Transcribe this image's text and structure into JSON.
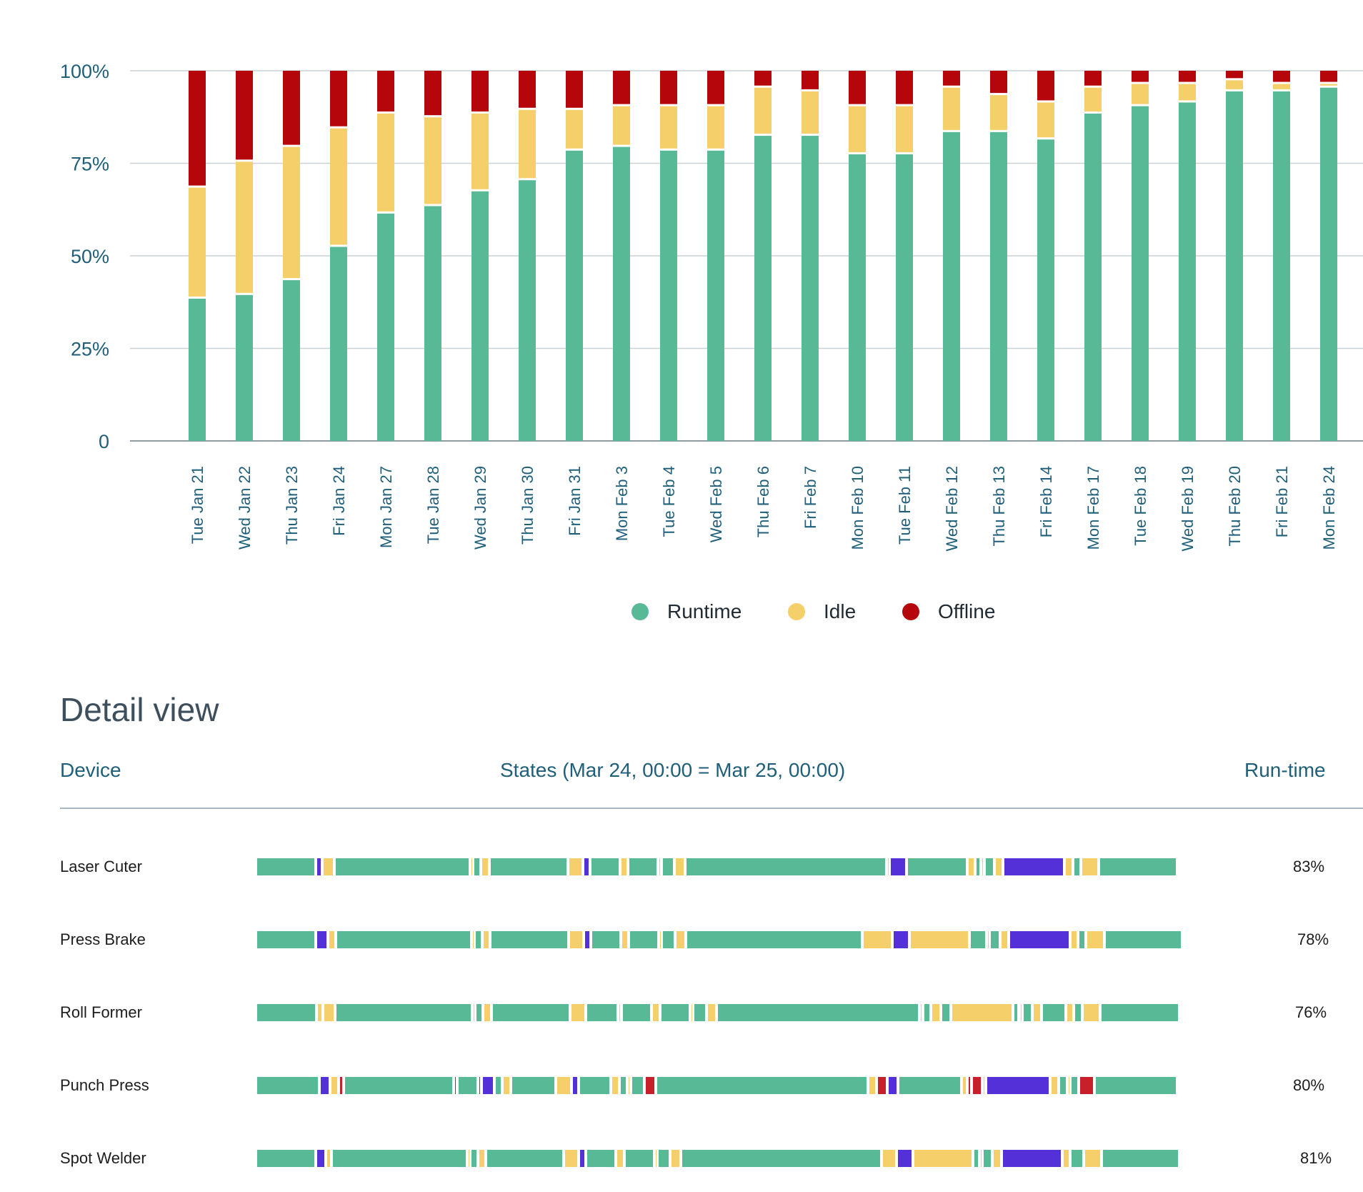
{
  "chart_data": {
    "type": "bar",
    "stacked": true,
    "categories": [
      "Tue Jan 21",
      "Wed Jan 22",
      "Thu  Jan 23",
      "Fri Jan 24",
      "Mon Jan 27",
      "Tue Jan 28",
      "Wed Jan 29",
      "Thu Jan 30",
      "Fri Jan 31",
      "Mon Feb 3",
      "Tue Feb 4",
      "Wed Feb 5",
      "Thu Feb 6",
      "Fri Feb 7",
      "Mon Feb 10",
      "Tue Feb 11",
      "Wed Feb 12",
      "Thu Feb 13",
      "Fri Feb 14",
      "Mon Feb 17",
      "Tue Feb 18",
      "Wed Feb 19",
      "Thu Feb 20",
      "Fri Feb 21",
      "Mon Feb 24"
    ],
    "series": [
      {
        "name": "Runtime",
        "color": "#58b996",
        "values": [
          39,
          40,
          44,
          53,
          62,
          64,
          68,
          71,
          79,
          80,
          79,
          79,
          83,
          83,
          78,
          78,
          84,
          84,
          82,
          89,
          91,
          92,
          95,
          95,
          96
        ]
      },
      {
        "name": "Idle",
        "color": "#f5d06a",
        "values": [
          30,
          36,
          36,
          32,
          27,
          24,
          21,
          19,
          11,
          11,
          12,
          12,
          13,
          12,
          13,
          13,
          12,
          10,
          10,
          7,
          6,
          5,
          3,
          2,
          1
        ]
      },
      {
        "name": "Offline",
        "color": "#b5070b",
        "values": [
          31,
          24,
          20,
          15,
          11,
          12,
          11,
          10,
          10,
          9,
          9,
          9,
          4,
          5,
          9,
          9,
          4,
          6,
          8,
          4,
          3,
          3,
          2,
          3,
          3
        ]
      }
    ],
    "yticks": [
      "0",
      "25%",
      "50%",
      "75%",
      "100%"
    ],
    "ylim": [
      0,
      100
    ],
    "legend_position": "bottom-center",
    "grid": true
  },
  "detail": {
    "title": "Detail view",
    "headers": {
      "device": "Device",
      "states": "States (Mar 24, 00:00 = Mar 25, 00:00)",
      "runtime": "Run-time"
    },
    "state_colors": {
      "run": "#58b996",
      "idle": "#f5d06a",
      "setup": "#5430d9",
      "down": "#c8202a"
    },
    "rows": [
      {
        "device": "Laser Cuter",
        "runtime": "83%",
        "segments": [
          [
            "run",
            6
          ],
          [
            "setup",
            0.6
          ],
          [
            "idle",
            1.2
          ],
          [
            "run",
            13.5
          ],
          [
            "idle",
            0.3
          ],
          [
            "run",
            0.8
          ],
          [
            "idle",
            0.8
          ],
          [
            "run",
            7.8
          ],
          [
            "idle",
            1.5
          ],
          [
            "setup",
            0.7
          ],
          [
            "run",
            3
          ],
          [
            "idle",
            0.8
          ],
          [
            "run",
            3
          ],
          [
            "idle",
            0.3
          ],
          [
            "run",
            1.3
          ],
          [
            "idle",
            1.1
          ],
          [
            "run",
            20
          ],
          [
            "idle",
            0.3
          ],
          [
            "setup",
            1.7
          ],
          [
            "run",
            6
          ],
          [
            "idle",
            0.8
          ],
          [
            "run",
            0.6
          ],
          [
            "idle",
            0.3
          ],
          [
            "run",
            1
          ],
          [
            "idle",
            0.9
          ],
          [
            "setup",
            6.1
          ],
          [
            "idle",
            0.8
          ],
          [
            "run",
            0.8
          ],
          [
            "idle",
            1.8
          ],
          [
            "run",
            7.8
          ]
        ]
      },
      {
        "device": "Press Brake",
        "runtime": "78%",
        "segments": [
          [
            "run",
            6
          ],
          [
            "setup",
            1.2
          ],
          [
            "idle",
            0.8
          ],
          [
            "run",
            13.5
          ],
          [
            "idle",
            0.3
          ],
          [
            "run",
            0.8
          ],
          [
            "idle",
            0.8
          ],
          [
            "run",
            7.8
          ],
          [
            "idle",
            1.5
          ],
          [
            "setup",
            0.7
          ],
          [
            "run",
            3
          ],
          [
            "idle",
            0.8
          ],
          [
            "run",
            3
          ],
          [
            "idle",
            0.3
          ],
          [
            "run",
            1.3
          ],
          [
            "idle",
            1.1
          ],
          [
            "run",
            17.6
          ],
          [
            "idle",
            3
          ],
          [
            "setup",
            1.7
          ],
          [
            "idle",
            6
          ],
          [
            "run",
            1.7
          ],
          [
            "idle",
            0.3
          ],
          [
            "run",
            1
          ],
          [
            "idle",
            0.9
          ],
          [
            "setup",
            6.1
          ],
          [
            "idle",
            0.8
          ],
          [
            "run",
            0.8
          ],
          [
            "idle",
            1.8
          ],
          [
            "run",
            7.8
          ]
        ]
      },
      {
        "device": "Roll Former",
        "runtime": "76%",
        "segments": [
          [
            "run",
            6
          ],
          [
            "idle",
            0.6
          ],
          [
            "idle",
            1.2
          ],
          [
            "run",
            13.5
          ],
          [
            "idle",
            0.3
          ],
          [
            "run",
            0.8
          ],
          [
            "idle",
            0.8
          ],
          [
            "run",
            7.8
          ],
          [
            "idle",
            1.5
          ],
          [
            "run",
            3.2
          ],
          [
            "idle",
            0.3
          ],
          [
            "run",
            3
          ],
          [
            "idle",
            0.8
          ],
          [
            "run",
            3
          ],
          [
            "idle",
            0.3
          ],
          [
            "run",
            1.3
          ],
          [
            "idle",
            1
          ],
          [
            "run",
            20
          ],
          [
            "idle",
            0.3
          ],
          [
            "run",
            0.8
          ],
          [
            "idle",
            1
          ],
          [
            "run",
            1
          ],
          [
            "idle",
            6.1
          ],
          [
            "run",
            0.6
          ],
          [
            "idle",
            0.3
          ],
          [
            "run",
            1
          ],
          [
            "idle",
            0.9
          ],
          [
            "run",
            2.4
          ],
          [
            "idle",
            0.8
          ],
          [
            "run",
            0.8
          ],
          [
            "idle",
            1.8
          ],
          [
            "run",
            7.8
          ]
        ]
      },
      {
        "device": "Punch Press",
        "runtime": "80%",
        "segments": [
          [
            "run",
            6
          ],
          [
            "setup",
            1
          ],
          [
            "idle",
            0.8
          ],
          [
            "down",
            0.5
          ],
          [
            "run",
            10.4
          ],
          [
            "down",
            0.3
          ],
          [
            "run",
            2
          ],
          [
            "down",
            0.3
          ],
          [
            "setup",
            1.2
          ],
          [
            "run",
            0.8
          ],
          [
            "idle",
            0.8
          ],
          [
            "run",
            4.2
          ],
          [
            "idle",
            1.5
          ],
          [
            "setup",
            0.7
          ],
          [
            "run",
            3
          ],
          [
            "idle",
            0.8
          ],
          [
            "run",
            0.8
          ],
          [
            "idle",
            0.3
          ],
          [
            "run",
            1.3
          ],
          [
            "down",
            1.1
          ],
          [
            "run",
            20
          ],
          [
            "idle",
            0.8
          ],
          [
            "down",
            1
          ],
          [
            "setup",
            1
          ],
          [
            "run",
            6
          ],
          [
            "idle",
            0.6
          ],
          [
            "down",
            0.4
          ],
          [
            "down",
            1
          ],
          [
            "idle",
            0.3
          ],
          [
            "setup",
            6.1
          ],
          [
            "idle",
            0.8
          ],
          [
            "run",
            0.8
          ],
          [
            "idle",
            0.3
          ],
          [
            "run",
            0.8
          ],
          [
            "down",
            1.5
          ],
          [
            "run",
            7.8
          ]
        ]
      },
      {
        "device": "Spot Welder",
        "runtime": "81%",
        "segments": [
          [
            "run",
            6
          ],
          [
            "setup",
            1
          ],
          [
            "idle",
            0.6
          ],
          [
            "run",
            13.5
          ],
          [
            "idle",
            0.3
          ],
          [
            "run",
            0.8
          ],
          [
            "idle",
            0.8
          ],
          [
            "run",
            7.8
          ],
          [
            "idle",
            1.5
          ],
          [
            "setup",
            0.7
          ],
          [
            "run",
            3
          ],
          [
            "idle",
            0.8
          ],
          [
            "run",
            3
          ],
          [
            "idle",
            0.3
          ],
          [
            "run",
            1.3
          ],
          [
            "idle",
            1.1
          ],
          [
            "run",
            20
          ],
          [
            "idle",
            1.5
          ],
          [
            "setup",
            1.7
          ],
          [
            "idle",
            6
          ],
          [
            "run",
            0.6
          ],
          [
            "idle",
            0.3
          ],
          [
            "run",
            1
          ],
          [
            "idle",
            0.9
          ],
          [
            "setup",
            6.1
          ],
          [
            "idle",
            0.8
          ],
          [
            "run",
            1.3
          ],
          [
            "idle",
            1.8
          ],
          [
            "run",
            7.8
          ]
        ]
      }
    ]
  }
}
